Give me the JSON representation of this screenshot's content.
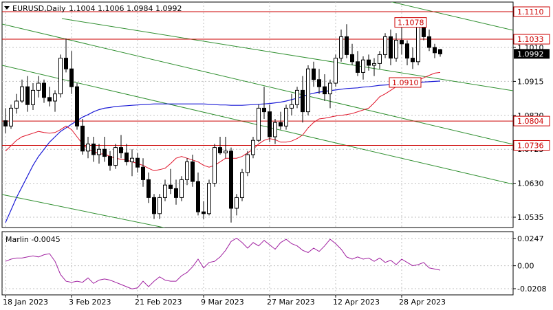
{
  "header": {
    "symbol": "EURUSD,Daily",
    "ohlc": "1.1004 1.1006 1.0984 1.0992",
    "menu_icon": "triangle-down-icon"
  },
  "colors": {
    "background": "#ffffff",
    "grid": "#c0c0c0",
    "frame": "#000000",
    "candle": "#000000",
    "bull_fill": "#ffffff",
    "bear_fill": "#000000",
    "ma_blue": "#1b1bd6",
    "ma_red": "#e0152a",
    "channel": "#2f8f2f",
    "hline": "#cc0000",
    "osc": "#a020a0"
  },
  "price_axis": {
    "ticks": [
      "1.1010",
      "1.0915",
      "1.0820",
      "1.0725",
      "1.0630",
      "1.0535"
    ],
    "current_price": "1.0992"
  },
  "levels": [
    {
      "price": 1.111,
      "label": "1.1110",
      "style": "box"
    },
    {
      "price": 1.1033,
      "label": "1.1033",
      "style": "box"
    },
    {
      "price": 1.0804,
      "label": "1.0804",
      "style": "box"
    },
    {
      "price": 1.0736,
      "label": "1.0736",
      "style": "box"
    }
  ],
  "annotations": [
    {
      "label": "1.1078",
      "price": 1.1078,
      "bar": 72
    },
    {
      "label": "1.0910",
      "price": 1.091,
      "bar": 71
    }
  ],
  "time_axis": {
    "labels": [
      {
        "text": "18 Jan 2023",
        "bar": 0
      },
      {
        "text": "3 Feb 2023",
        "bar": 12
      },
      {
        "text": "21 Feb 2023",
        "bar": 24
      },
      {
        "text": "9 Mar 2023",
        "bar": 36
      },
      {
        "text": "27 Mar 2023",
        "bar": 48
      },
      {
        "text": "12 Apr 2023",
        "bar": 60
      },
      {
        "text": "28 Apr 2023",
        "bar": 72
      }
    ]
  },
  "oscillator": {
    "name": "Marlin",
    "label": "Marlin -0.0045",
    "ticks": [
      "0.0247",
      "0.00",
      "-0.0208"
    ],
    "values": [
      0.004,
      0.006,
      0.007,
      0.007,
      0.008,
      0.009,
      0.008,
      0.01,
      0.011,
      0.004,
      -0.008,
      -0.014,
      -0.015,
      -0.014,
      -0.015,
      -0.011,
      -0.016,
      -0.013,
      -0.012,
      -0.013,
      -0.015,
      -0.017,
      -0.019,
      -0.021,
      -0.02,
      -0.014,
      -0.019,
      -0.014,
      -0.01,
      -0.013,
      -0.014,
      -0.014,
      -0.009,
      -0.006,
      -0.001,
      0.006,
      -0.002,
      0.003,
      0.004,
      0.008,
      0.014,
      0.022,
      0.025,
      0.021,
      0.016,
      0.021,
      0.018,
      0.023,
      0.019,
      0.015,
      0.021,
      0.024,
      0.02,
      0.018,
      0.014,
      0.012,
      0.016,
      0.013,
      0.018,
      0.024,
      0.02,
      0.015,
      0.008,
      0.006,
      0.008,
      0.006,
      0.007,
      0.004,
      0.007,
      0.003,
      0.005,
      0.001,
      0.006,
      0.003,
      0.0,
      0.001,
      0.003,
      -0.002,
      -0.003,
      -0.004
    ]
  },
  "candles": [
    [
      1.0805,
      1.084,
      1.077,
      1.079
    ],
    [
      1.079,
      1.085,
      1.0782,
      1.084
    ],
    [
      1.084,
      1.088,
      1.0825,
      1.086
    ],
    [
      1.086,
      1.092,
      1.0855,
      1.09
    ],
    [
      1.09,
      1.093,
      1.083,
      1.085
    ],
    [
      1.085,
      1.091,
      1.0835,
      1.089
    ],
    [
      1.089,
      1.093,
      1.087,
      1.091
    ],
    [
      1.091,
      1.092,
      1.0855,
      1.087
    ],
    [
      1.087,
      1.09,
      1.0845,
      1.086
    ],
    [
      1.086,
      1.089,
      1.083,
      1.088
    ],
    [
      1.088,
      1.099,
      1.087,
      1.098
    ],
    [
      1.098,
      1.1035,
      1.094,
      1.095
    ],
    [
      1.095,
      1.1,
      1.088,
      1.09
    ],
    [
      1.09,
      1.091,
      1.078,
      1.079
    ],
    [
      1.079,
      1.081,
      1.071,
      1.072
    ],
    [
      1.072,
      1.076,
      1.07,
      1.074
    ],
    [
      1.074,
      1.076,
      1.069,
      1.071
    ],
    [
      1.071,
      1.074,
      1.0685,
      1.0725
    ],
    [
      1.0725,
      1.076,
      1.069,
      1.0705
    ],
    [
      1.0705,
      1.072,
      1.0665,
      1.068
    ],
    [
      1.068,
      1.074,
      1.067,
      1.073
    ],
    [
      1.073,
      1.0765,
      1.07,
      1.0715
    ],
    [
      1.0715,
      1.074,
      1.068,
      1.069
    ],
    [
      1.069,
      1.0725,
      1.065,
      1.07
    ],
    [
      1.07,
      1.0715,
      1.066,
      1.0675
    ],
    [
      1.0675,
      1.07,
      1.062,
      1.064
    ],
    [
      1.064,
      1.066,
      1.0575,
      1.059
    ],
    [
      1.059,
      1.06,
      1.053,
      1.0545
    ],
    [
      1.0545,
      1.06,
      1.053,
      1.059
    ],
    [
      1.059,
      1.064,
      1.058,
      1.0625
    ],
    [
      1.0625,
      1.067,
      1.06,
      1.0615
    ],
    [
      1.0615,
      1.064,
      1.057,
      1.059
    ],
    [
      1.059,
      1.065,
      1.058,
      1.064
    ],
    [
      1.064,
      1.07,
      1.0625,
      1.069
    ],
    [
      1.069,
      1.071,
      1.062,
      1.0635
    ],
    [
      1.0635,
      1.066,
      1.054,
      1.055
    ],
    [
      1.055,
      1.058,
      1.053,
      1.0545
    ],
    [
      1.0545,
      1.064,
      1.054,
      1.063
    ],
    [
      1.063,
      1.074,
      1.062,
      1.073
    ],
    [
      1.073,
      1.076,
      1.071,
      1.0715
    ],
    [
      1.0715,
      1.076,
      1.07,
      1.072
    ],
    [
      1.072,
      1.073,
      1.052,
      1.056
    ],
    [
      1.056,
      1.06,
      1.054,
      1.059
    ],
    [
      1.059,
      1.067,
      1.058,
      1.066
    ],
    [
      1.066,
      1.072,
      1.065,
      1.071
    ],
    [
      1.071,
      1.076,
      1.07,
      1.075
    ],
    [
      1.075,
      1.085,
      1.0745,
      1.084
    ],
    [
      1.084,
      1.09,
      1.081,
      1.083
    ],
    [
      1.083,
      1.085,
      1.0745,
      1.076
    ],
    [
      1.076,
      1.081,
      1.074,
      1.08
    ],
    [
      1.08,
      1.083,
      1.078,
      1.079
    ],
    [
      1.079,
      1.085,
      1.078,
      1.084
    ],
    [
      1.084,
      1.088,
      1.082,
      1.085
    ],
    [
      1.085,
      1.09,
      1.084,
      1.089
    ],
    [
      1.089,
      1.093,
      1.08,
      1.083
    ],
    [
      1.083,
      1.096,
      1.082,
      1.095
    ],
    [
      1.095,
      1.097,
      1.09,
      1.092
    ],
    [
      1.092,
      1.095,
      1.088,
      1.09
    ],
    [
      1.09,
      1.0935,
      1.086,
      1.088
    ],
    [
      1.088,
      1.092,
      1.084,
      1.091
    ],
    [
      1.091,
      1.099,
      1.09,
      1.098
    ],
    [
      1.098,
      1.106,
      1.097,
      1.104
    ],
    [
      1.104,
      1.1075,
      1.098,
      1.099
    ],
    [
      1.099,
      1.102,
      1.096,
      1.097
    ],
    [
      1.097,
      1.1,
      1.093,
      1.094
    ],
    [
      1.094,
      1.0985,
      1.092,
      1.0975
    ],
    [
      1.0975,
      1.099,
      1.0945,
      1.096
    ],
    [
      1.096,
      1.098,
      1.093,
      1.0965
    ],
    [
      1.0965,
      1.1,
      1.095,
      1.099
    ],
    [
      1.099,
      1.105,
      1.098,
      1.104
    ],
    [
      1.104,
      1.106,
      1.096,
      1.098
    ],
    [
      1.098,
      1.105,
      1.097,
      1.103
    ],
    [
      1.103,
      1.107,
      1.099,
      1.102
    ],
    [
      1.102,
      1.103,
      1.096,
      1.098
    ],
    [
      1.098,
      1.101,
      1.095,
      1.097
    ],
    [
      1.097,
      1.108,
      1.096,
      1.107
    ],
    [
      1.107,
      1.109,
      1.103,
      1.104
    ],
    [
      1.104,
      1.106,
      1.1,
      1.101
    ],
    [
      1.101,
      1.102,
      1.098,
      1.0995
    ],
    [
      1.1004,
      1.1006,
      1.0984,
      1.0992
    ]
  ],
  "ma_blue": [
    1.052,
    1.0555,
    1.059,
    1.062,
    1.065,
    1.068,
    1.0705,
    1.0725,
    1.0745,
    1.076,
    1.0775,
    1.0785,
    1.0795,
    1.0805,
    1.0815,
    1.0822,
    1.083,
    1.0836,
    1.084,
    1.0842,
    1.0845,
    1.0846,
    1.0847,
    1.0848,
    1.0849,
    1.085,
    1.0851,
    1.0852,
    1.0852,
    1.0852,
    1.0852,
    1.0852,
    1.0852,
    1.0852,
    1.0852,
    1.0852,
    1.0852,
    1.0851,
    1.085,
    1.0849,
    1.0849,
    1.0848,
    1.0848,
    1.0848,
    1.0849,
    1.085,
    1.0851,
    1.0852,
    1.0853,
    1.0855,
    1.0857,
    1.086,
    1.0864,
    1.0868,
    1.0873,
    1.0878,
    1.0882,
    1.0885,
    1.0887,
    1.0889,
    1.0891,
    1.0893,
    1.0895,
    1.0896,
    1.0897,
    1.0899,
    1.09,
    1.0902,
    1.0904,
    1.0905,
    1.0906,
    1.0908,
    1.0909,
    1.091,
    1.0911,
    1.0912,
    1.0913,
    1.0914,
    1.0915,
    1.0916
  ],
  "ma_red": [
    1.072,
    1.0735,
    1.075,
    1.076,
    1.0765,
    1.077,
    1.0775,
    1.0772,
    1.077,
    1.0772,
    1.078,
    1.079,
    1.078,
    1.076,
    1.074,
    1.0725,
    1.072,
    1.0712,
    1.0712,
    1.0705,
    1.07,
    1.0697,
    1.0695,
    1.069,
    1.0685,
    1.068,
    1.0672,
    1.0665,
    1.0668,
    1.0672,
    1.0685,
    1.07,
    1.0705,
    1.07,
    1.0695,
    1.069,
    1.068,
    1.0675,
    1.068,
    1.069,
    1.07,
    1.07,
    1.07,
    1.0705,
    1.0715,
    1.0725,
    1.074,
    1.075,
    1.0755,
    1.0752,
    1.0745,
    1.0745,
    1.0748,
    1.0755,
    1.0765,
    1.0785,
    1.08,
    1.081,
    1.0812,
    1.0815,
    1.0818,
    1.082,
    1.0822,
    1.0825,
    1.083,
    1.0835,
    1.084,
    1.0855,
    1.0872,
    1.088,
    1.089,
    1.09,
    1.09,
    1.0905,
    1.091,
    1.0918,
    1.0925,
    1.0932,
    1.0938,
    1.094
  ]
}
